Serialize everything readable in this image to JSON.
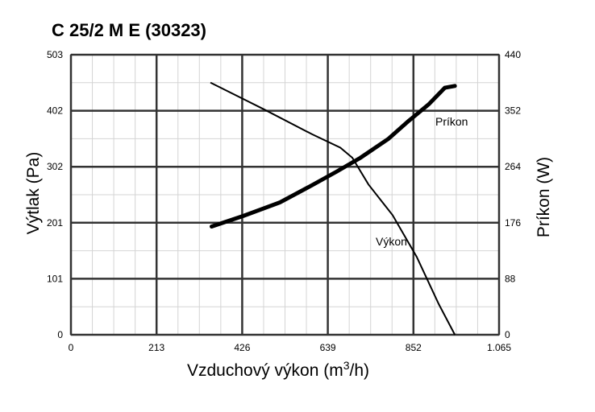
{
  "chart_data": {
    "type": "line",
    "title": "C 25/2 M E (30323)",
    "xlabel": "Vzduchový výkon (m³/h)",
    "ylabel": "Výtlak (Pa)",
    "y2label": "Príkon (W)",
    "xlim": [
      0,
      1065
    ],
    "ylim": [
      0,
      503
    ],
    "y2lim": [
      0,
      440
    ],
    "x_ticks": [
      "0",
      "213",
      "426",
      "639",
      "852",
      "1.065"
    ],
    "y_ticks": [
      "0",
      "101",
      "201",
      "302",
      "402",
      "503"
    ],
    "y2_ticks": [
      "0",
      "88",
      "176",
      "264",
      "352",
      "440"
    ],
    "grid": true,
    "series": [
      {
        "name": "Výkon",
        "axis": "left",
        "x": [
          347,
          480,
          600,
          670,
          700,
          740,
          800,
          860,
          915,
          955
        ],
        "y": [
          453,
          405,
          360,
          336,
          318,
          270,
          215,
          140,
          55,
          0
        ]
      },
      {
        "name": "Príkon",
        "axis": "right",
        "x": [
          350,
          430,
          520,
          600,
          660,
          720,
          790,
          840,
          890,
          930,
          955
        ],
        "y": [
          170,
          187,
          208,
          235,
          256,
          278,
          308,
          336,
          362,
          388,
          391
        ]
      }
    ]
  }
}
